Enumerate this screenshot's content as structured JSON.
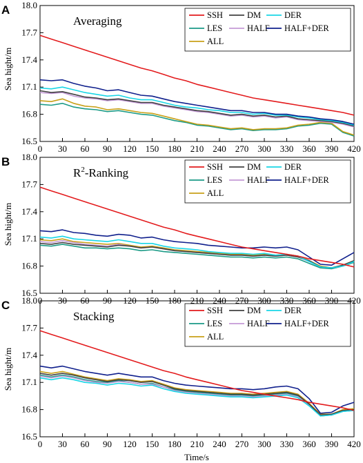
{
  "figure": {
    "ylabel": "Sea hight/m",
    "xlabel": "Time/s"
  },
  "colors": {
    "SSH": "#e31a1c",
    "DM": "#404040",
    "DER": "#18d6e6",
    "LES": "#1a9a86",
    "HALF": "#c49ad6",
    "HALF+DER": "#0f1f8c",
    "ALL": "#c8a018"
  },
  "chart_data": [
    {
      "type": "line",
      "panel_letter": "A",
      "title": "Averaging",
      "title_sup": "",
      "title_rest": "",
      "xlabel": "",
      "ylabel": "Sea hight/m",
      "xlim": [
        0,
        420
      ],
      "ylim": [
        16.5,
        18.0
      ],
      "xticks": [
        0,
        30,
        60,
        90,
        120,
        150,
        180,
        210,
        240,
        270,
        300,
        330,
        360,
        390,
        420
      ],
      "yticks": [
        16.5,
        16.8,
        17.1,
        17.4,
        17.7,
        18.0
      ],
      "legend": "top-right",
      "legend_entries": [
        "SSH",
        "DM",
        "DER",
        "LES",
        "HALF",
        "HALF+DER",
        "ALL"
      ],
      "x": [
        0,
        15,
        30,
        45,
        60,
        75,
        90,
        105,
        120,
        135,
        150,
        165,
        180,
        195,
        210,
        225,
        240,
        255,
        270,
        285,
        300,
        315,
        330,
        345,
        360,
        375,
        390,
        405,
        420
      ],
      "series": [
        {
          "name": "SSH",
          "values": [
            17.67,
            17.63,
            17.59,
            17.55,
            17.51,
            17.47,
            17.43,
            17.39,
            17.35,
            17.31,
            17.28,
            17.24,
            17.2,
            17.17,
            17.13,
            17.1,
            17.07,
            17.04,
            17.01,
            16.98,
            16.96,
            16.94,
            16.92,
            16.9,
            16.88,
            16.86,
            16.84,
            16.82,
            16.79
          ]
        },
        {
          "name": "DM",
          "values": [
            17.06,
            17.04,
            17.05,
            17.02,
            16.99,
            16.98,
            16.96,
            16.97,
            16.95,
            16.93,
            16.93,
            16.9,
            16.88,
            16.86,
            16.84,
            16.83,
            16.81,
            16.79,
            16.8,
            16.78,
            16.79,
            16.77,
            16.78,
            16.75,
            16.74,
            16.73,
            16.72,
            16.7,
            16.67
          ]
        },
        {
          "name": "DER",
          "values": [
            17.09,
            17.08,
            17.1,
            17.07,
            17.04,
            17.02,
            17.0,
            17.01,
            16.98,
            16.96,
            16.96,
            16.93,
            16.9,
            16.88,
            16.87,
            16.85,
            16.84,
            16.82,
            16.82,
            16.8,
            16.81,
            16.79,
            16.79,
            16.77,
            16.76,
            16.74,
            16.73,
            16.71,
            16.68
          ]
        },
        {
          "name": "LES",
          "values": [
            16.91,
            16.9,
            16.92,
            16.88,
            16.86,
            16.85,
            16.83,
            16.84,
            16.82,
            16.8,
            16.79,
            16.76,
            16.73,
            16.71,
            16.68,
            16.67,
            16.65,
            16.63,
            16.64,
            16.62,
            16.63,
            16.63,
            16.64,
            16.67,
            16.68,
            16.7,
            16.69,
            16.6,
            16.56
          ]
        },
        {
          "name": "HALF",
          "values": [
            17.04,
            17.03,
            17.04,
            17.0,
            16.98,
            16.97,
            16.95,
            16.96,
            16.94,
            16.92,
            16.92,
            16.89,
            16.87,
            16.85,
            16.83,
            16.82,
            16.8,
            16.78,
            16.79,
            16.77,
            16.78,
            16.76,
            16.77,
            16.74,
            16.73,
            16.72,
            16.71,
            16.69,
            16.66
          ]
        },
        {
          "name": "HALF+DER",
          "values": [
            17.18,
            17.17,
            17.18,
            17.14,
            17.11,
            17.09,
            17.06,
            17.07,
            17.04,
            17.01,
            17.0,
            16.97,
            16.94,
            16.92,
            16.9,
            16.88,
            16.86,
            16.84,
            16.84,
            16.82,
            16.82,
            16.8,
            16.8,
            16.78,
            16.77,
            16.75,
            16.74,
            16.72,
            16.69
          ]
        },
        {
          "name": "ALL",
          "values": [
            16.95,
            16.94,
            16.97,
            16.92,
            16.89,
            16.88,
            16.85,
            16.86,
            16.84,
            16.82,
            16.81,
            16.78,
            16.75,
            16.72,
            16.69,
            16.68,
            16.66,
            16.64,
            16.65,
            16.63,
            16.64,
            16.64,
            16.65,
            16.68,
            16.69,
            16.71,
            16.7,
            16.61,
            16.57
          ]
        }
      ]
    },
    {
      "type": "line",
      "panel_letter": "B",
      "title": "R",
      "title_sup": "2",
      "title_rest": "-Ranking",
      "xlabel": "",
      "ylabel": "Sea hight/m",
      "xlim": [
        0,
        420
      ],
      "ylim": [
        16.5,
        18.0
      ],
      "xticks": [
        0,
        30,
        60,
        90,
        120,
        150,
        180,
        210,
        240,
        270,
        300,
        330,
        360,
        390,
        420
      ],
      "yticks": [
        16.5,
        16.8,
        17.1,
        17.4,
        17.7,
        18.0
      ],
      "legend": "top-right",
      "legend_entries": [
        "SSH",
        "DM",
        "DER",
        "LES",
        "HALF",
        "HALF+DER",
        "ALL"
      ],
      "x": [
        0,
        15,
        30,
        45,
        60,
        75,
        90,
        105,
        120,
        135,
        150,
        165,
        180,
        195,
        210,
        225,
        240,
        255,
        270,
        285,
        300,
        315,
        330,
        345,
        360,
        375,
        390,
        405,
        420
      ],
      "series": [
        {
          "name": "SSH",
          "values": [
            17.67,
            17.63,
            17.59,
            17.55,
            17.51,
            17.47,
            17.43,
            17.39,
            17.35,
            17.31,
            17.27,
            17.23,
            17.2,
            17.16,
            17.13,
            17.1,
            17.07,
            17.04,
            17.01,
            16.99,
            16.97,
            16.95,
            16.93,
            16.91,
            16.88,
            16.86,
            16.84,
            16.82,
            16.79
          ]
        },
        {
          "name": "DM",
          "values": [
            17.05,
            17.04,
            17.06,
            17.04,
            17.03,
            17.02,
            17.01,
            17.03,
            17.02,
            17.0,
            17.01,
            16.99,
            16.97,
            16.96,
            16.95,
            16.94,
            16.93,
            16.92,
            16.92,
            16.91,
            16.92,
            16.91,
            16.92,
            16.9,
            16.86,
            16.79,
            16.78,
            16.81,
            16.86
          ]
        },
        {
          "name": "DER",
          "values": [
            17.12,
            17.11,
            17.13,
            17.1,
            17.09,
            17.08,
            17.07,
            17.09,
            17.07,
            17.05,
            17.05,
            17.02,
            17.0,
            16.99,
            16.98,
            16.96,
            16.95,
            16.94,
            16.94,
            16.93,
            16.94,
            16.92,
            16.93,
            16.91,
            16.85,
            16.79,
            16.78,
            16.8,
            16.85
          ]
        },
        {
          "name": "LES",
          "values": [
            17.03,
            17.02,
            17.04,
            17.02,
            17.0,
            17.0,
            16.99,
            17.0,
            16.99,
            16.97,
            16.98,
            16.96,
            16.95,
            16.94,
            16.93,
            16.92,
            16.91,
            16.9,
            16.9,
            16.89,
            16.9,
            16.89,
            16.9,
            16.88,
            16.83,
            16.78,
            16.77,
            16.8,
            16.84
          ]
        },
        {
          "name": "HALF",
          "values": [
            17.07,
            17.06,
            17.08,
            17.06,
            17.04,
            17.03,
            17.02,
            17.04,
            17.02,
            17.0,
            17.01,
            16.99,
            16.97,
            16.96,
            16.95,
            16.94,
            16.93,
            16.92,
            16.92,
            16.91,
            16.92,
            16.91,
            16.92,
            16.9,
            16.85,
            16.79,
            16.78,
            16.8,
            16.85
          ]
        },
        {
          "name": "HALF+DER",
          "values": [
            17.19,
            17.18,
            17.2,
            17.17,
            17.16,
            17.14,
            17.13,
            17.15,
            17.14,
            17.11,
            17.12,
            17.09,
            17.07,
            17.06,
            17.05,
            17.03,
            17.02,
            17.01,
            17.0,
            17.0,
            17.01,
            17.0,
            17.01,
            16.98,
            16.9,
            16.82,
            16.81,
            16.88,
            16.95
          ]
        },
        {
          "name": "ALL",
          "values": [
            17.09,
            17.08,
            17.1,
            17.07,
            17.06,
            17.05,
            17.04,
            17.05,
            17.03,
            17.01,
            17.02,
            17.0,
            16.98,
            16.97,
            16.96,
            16.95,
            16.94,
            16.93,
            16.93,
            16.92,
            16.93,
            16.92,
            16.93,
            16.91,
            16.86,
            16.8,
            16.78,
            16.81,
            16.86
          ]
        }
      ]
    },
    {
      "type": "line",
      "panel_letter": "C",
      "title": "Stacking",
      "title_sup": "",
      "title_rest": "",
      "xlabel": "Time/s",
      "ylabel": "Sea hight/m",
      "xlim": [
        0,
        420
      ],
      "ylim": [
        16.5,
        18.0
      ],
      "xticks": [
        0,
        30,
        60,
        90,
        120,
        150,
        180,
        210,
        240,
        270,
        300,
        330,
        360,
        390,
        420
      ],
      "yticks": [
        16.5,
        16.8,
        17.1,
        17.4,
        17.7,
        18.0
      ],
      "legend": "top-right",
      "legend_entries": [
        "SSH",
        "DM",
        "DER",
        "LES",
        "HALF",
        "HALF+DER",
        "ALL"
      ],
      "x": [
        0,
        15,
        30,
        45,
        60,
        75,
        90,
        105,
        120,
        135,
        150,
        165,
        180,
        195,
        210,
        225,
        240,
        255,
        270,
        285,
        300,
        315,
        330,
        345,
        360,
        375,
        390,
        405,
        420
      ],
      "series": [
        {
          "name": "SSH",
          "values": [
            17.67,
            17.63,
            17.59,
            17.55,
            17.51,
            17.47,
            17.43,
            17.39,
            17.35,
            17.31,
            17.27,
            17.23,
            17.2,
            17.16,
            17.13,
            17.1,
            17.07,
            17.04,
            17.01,
            16.99,
            16.97,
            16.95,
            16.93,
            16.91,
            16.88,
            16.86,
            16.84,
            16.82,
            16.79
          ]
        },
        {
          "name": "DM",
          "values": [
            17.2,
            17.18,
            17.2,
            17.18,
            17.15,
            17.13,
            17.11,
            17.13,
            17.12,
            17.1,
            17.11,
            17.07,
            17.03,
            17.01,
            17.0,
            16.99,
            16.98,
            16.97,
            16.97,
            16.96,
            16.97,
            16.98,
            16.99,
            16.96,
            16.86,
            16.74,
            16.75,
            16.79,
            16.8
          ]
        },
        {
          "name": "DER",
          "values": [
            17.15,
            17.13,
            17.15,
            17.13,
            17.1,
            17.09,
            17.07,
            17.09,
            17.08,
            17.06,
            17.07,
            17.03,
            17.0,
            16.98,
            16.97,
            16.96,
            16.95,
            16.94,
            16.94,
            16.93,
            16.94,
            16.95,
            16.96,
            16.93,
            16.84,
            16.73,
            16.74,
            16.78,
            16.79
          ]
        },
        {
          "name": "LES",
          "values": [
            17.18,
            17.16,
            17.18,
            17.16,
            17.13,
            17.11,
            17.1,
            17.12,
            17.1,
            17.08,
            17.09,
            17.05,
            17.02,
            17.0,
            16.99,
            16.98,
            16.97,
            16.96,
            16.96,
            16.95,
            16.96,
            16.97,
            16.98,
            16.95,
            16.85,
            16.73,
            16.74,
            16.78,
            16.79
          ]
        },
        {
          "name": "HALF",
          "values": [
            17.17,
            17.15,
            17.17,
            17.15,
            17.12,
            17.1,
            17.09,
            17.11,
            17.1,
            17.08,
            17.08,
            17.05,
            17.01,
            16.99,
            16.98,
            16.97,
            16.96,
            16.95,
            16.95,
            16.94,
            16.95,
            16.96,
            16.97,
            16.94,
            16.85,
            16.74,
            16.74,
            16.78,
            16.79
          ]
        },
        {
          "name": "HALF+DER",
          "values": [
            17.28,
            17.26,
            17.28,
            17.25,
            17.22,
            17.2,
            17.18,
            17.2,
            17.18,
            17.16,
            17.16,
            17.12,
            17.09,
            17.07,
            17.06,
            17.05,
            17.04,
            17.03,
            17.03,
            17.02,
            17.03,
            17.05,
            17.06,
            17.03,
            16.92,
            16.76,
            16.77,
            16.84,
            16.88
          ]
        },
        {
          "name": "ALL",
          "values": [
            17.22,
            17.2,
            17.22,
            17.19,
            17.16,
            17.14,
            17.12,
            17.14,
            17.13,
            17.11,
            17.12,
            17.08,
            17.04,
            17.02,
            17.01,
            17.0,
            16.99,
            16.98,
            16.98,
            16.97,
            16.98,
            16.99,
            17.0,
            16.97,
            16.87,
            16.75,
            16.75,
            16.8,
            16.81
          ]
        }
      ]
    }
  ]
}
